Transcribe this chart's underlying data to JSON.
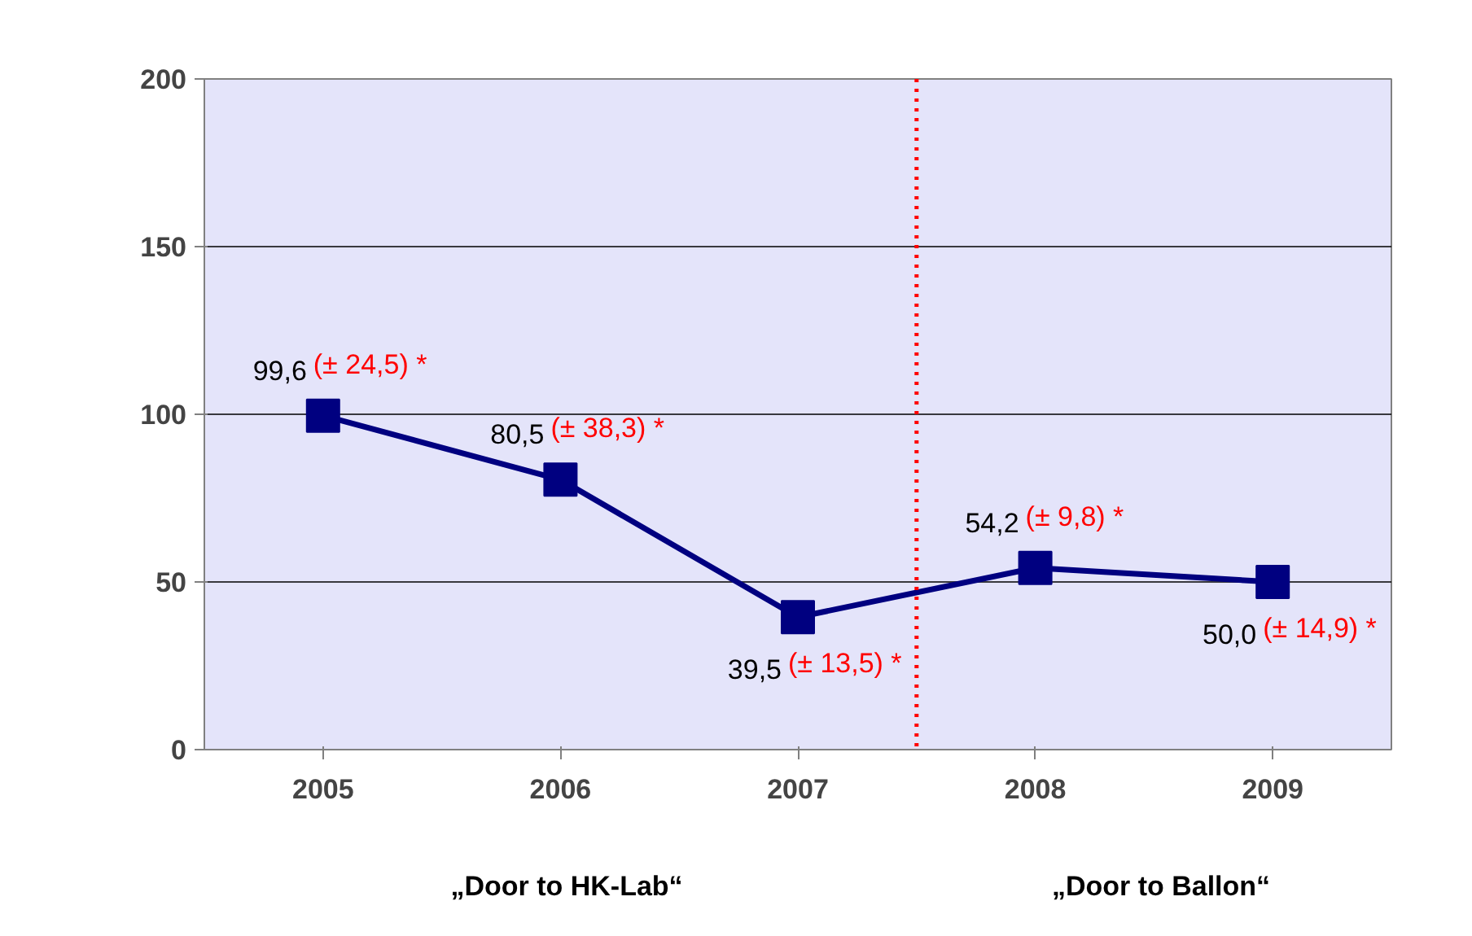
{
  "chart_data": {
    "type": "line",
    "x": [
      2005,
      2006,
      2007,
      2008,
      2009
    ],
    "xlim": [
      2004.5,
      2009.5
    ],
    "xticks": [
      2005,
      2006,
      2007,
      2008,
      2009
    ],
    "ylim": [
      0,
      200
    ],
    "yticks": [
      0,
      50,
      100,
      150,
      200
    ],
    "grid": "y",
    "marker": "square",
    "line_style": "solid",
    "series": [
      {
        "color": "#000080",
        "values": [
          99.6,
          80.5,
          39.5,
          54.2,
          50.0
        ],
        "value_labels": [
          "99,6",
          "80,5",
          "39,5",
          "54,2",
          "50,0"
        ]
      }
    ],
    "ref_lines": [
      {
        "axis": "x",
        "value": 2007.5,
        "color": "#ff0000",
        "line_style": "dotted"
      }
    ],
    "annotations": [
      {
        "text": "(± 24,5) *",
        "x": 2005,
        "y": 99.6
      },
      {
        "text": "(± 38,3) *",
        "x": 2006,
        "y": 80.5
      },
      {
        "text": "(± 13,5) *",
        "x": 2007,
        "y": 39.5
      },
      {
        "text": "(± 9,8) *",
        "x": 2008,
        "y": 54.2
      },
      {
        "text": "(± 14,9) *",
        "x": 2009,
        "y": 50.0
      },
      "„Door to HK-Lab“",
      "„Door to Ballon“"
    ]
  }
}
